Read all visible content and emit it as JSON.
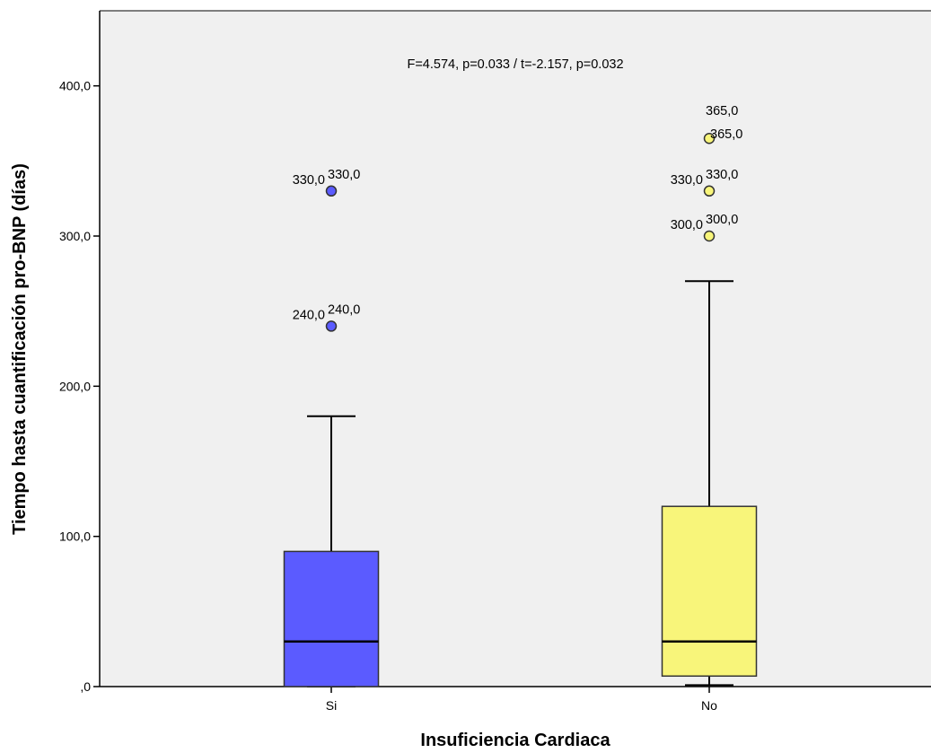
{
  "chart_data": {
    "type": "boxplot",
    "xlabel": "Insuficiencia Cardiaca",
    "ylabel": "Tiempo hasta cuantificación pro-BNP (días)",
    "ylim": [
      0,
      450
    ],
    "yticks": [
      0,
      100,
      200,
      300,
      400
    ],
    "ytick_labels": [
      ",0",
      "100,0",
      "200,0",
      "300,0",
      "400,0"
    ],
    "annotation": "F=4.574, p=0.033 / t=-2.157, p=0.032",
    "background": "#f0f0f0",
    "grid": false,
    "groups": [
      {
        "category": "Si",
        "color": "#5b5bff",
        "whisker_low": 0,
        "q1": 0,
        "median": 30,
        "q3": 90,
        "whisker_high": 180,
        "outliers": [
          {
            "value": 240,
            "labels": [
              "240,0",
              "240,0"
            ]
          },
          {
            "value": 330,
            "labels": [
              "330,0",
              "330,0"
            ]
          }
        ]
      },
      {
        "category": "No",
        "color": "#f8f57a",
        "whisker_low": 1,
        "q1": 7,
        "median": 30,
        "q3": 120,
        "whisker_high": 270,
        "outliers": [
          {
            "value": 300,
            "labels": [
              "300,0",
              "300,0"
            ]
          },
          {
            "value": 330,
            "labels": [
              "330,0",
              "330,0"
            ]
          },
          {
            "value": 365,
            "labels": [
              "365,0",
              "365,0"
            ]
          }
        ]
      }
    ]
  }
}
